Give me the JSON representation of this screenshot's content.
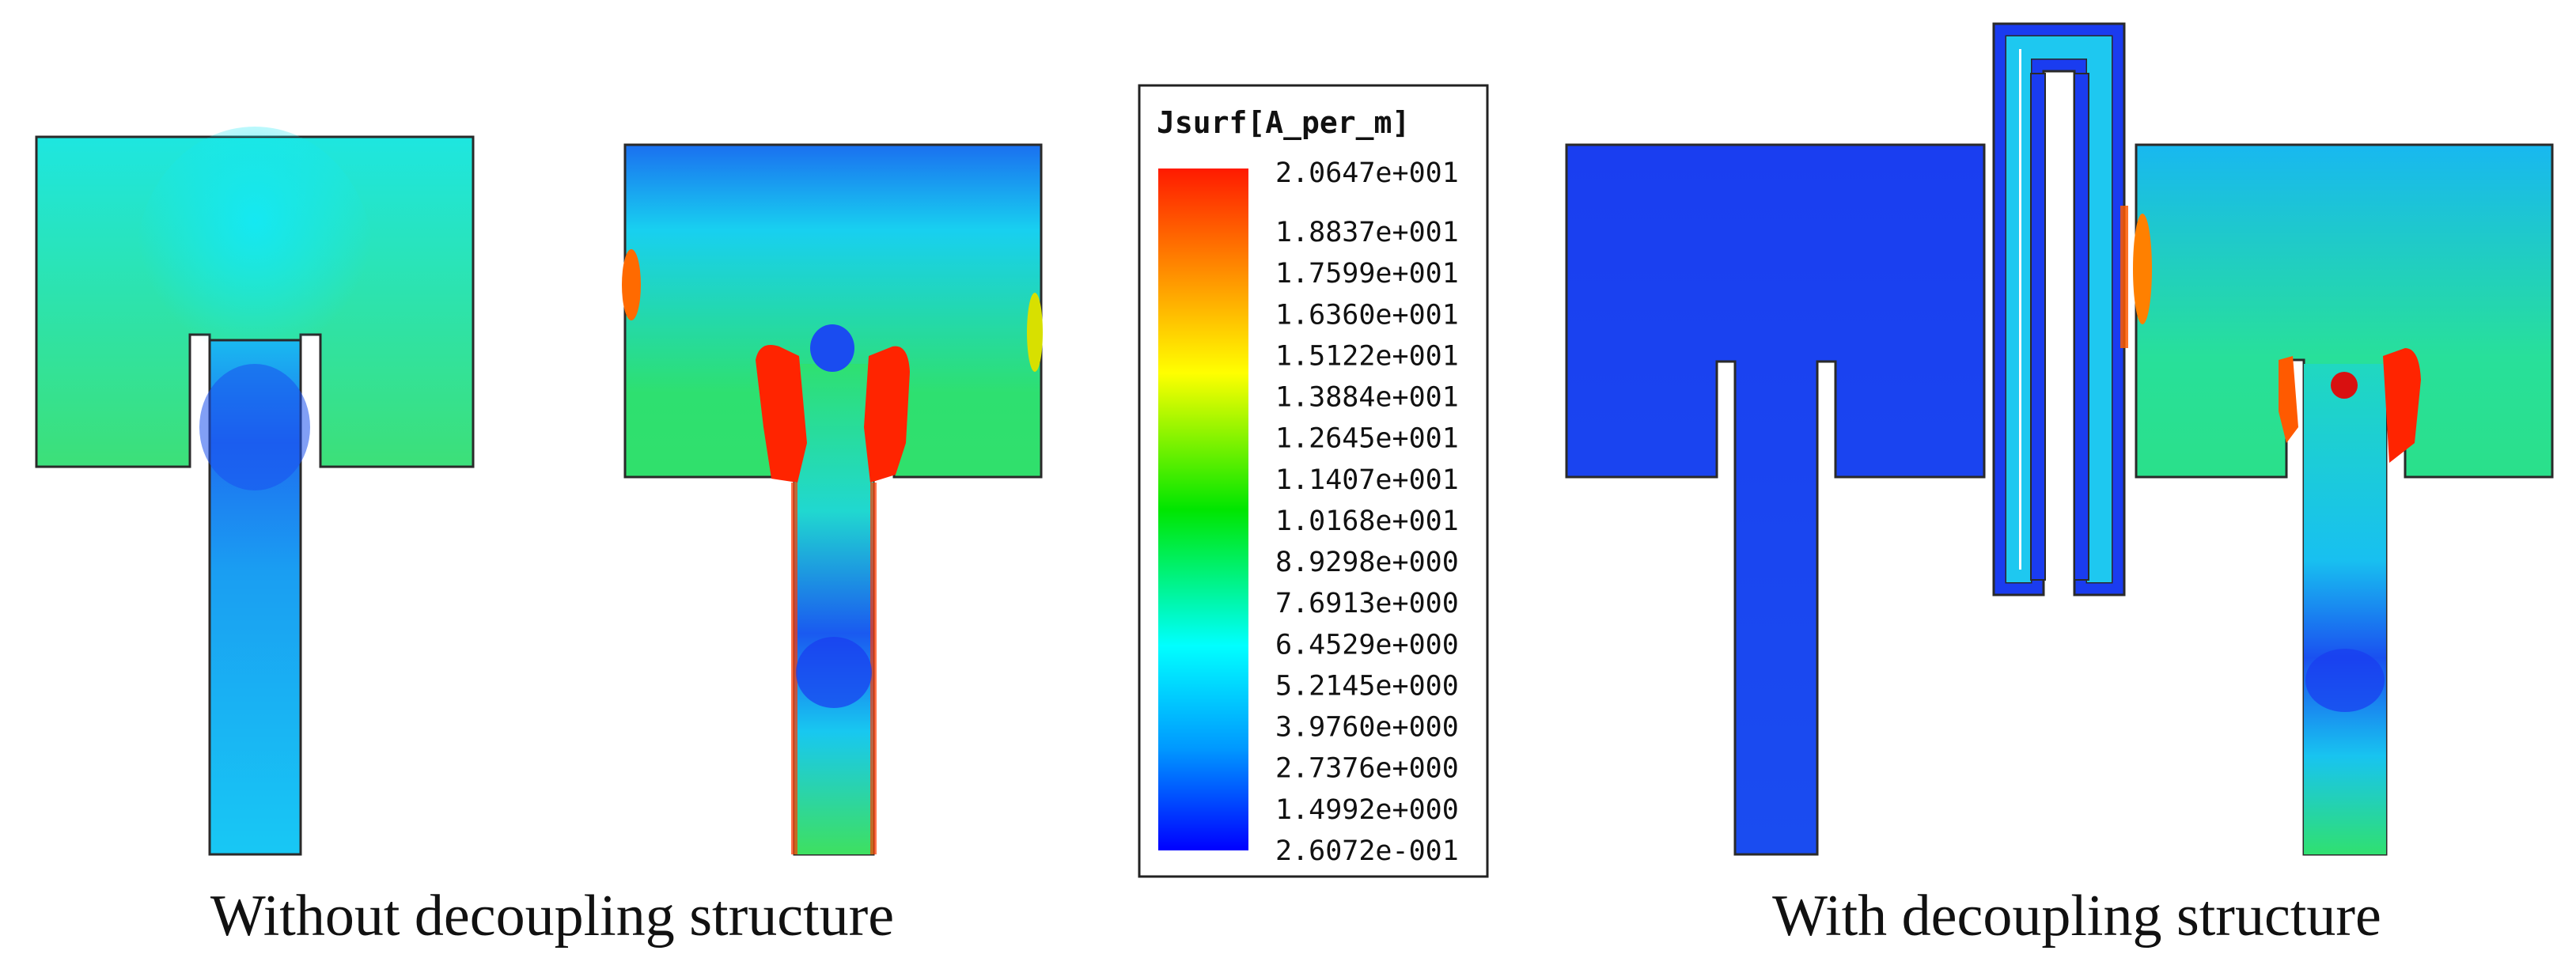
{
  "legend": {
    "title": "Jsurf[A_per_m]",
    "ticks": [
      "2.0647e+001",
      "1.8837e+001",
      "1.7599e+001",
      "1.6360e+001",
      "1.5122e+001",
      "1.3884e+001",
      "1.2645e+001",
      "1.1407e+001",
      "1.0168e+001",
      "8.9298e+000",
      "7.6913e+000",
      "6.4529e+000",
      "5.2145e+000",
      "3.9760e+000",
      "2.7376e+000",
      "1.4992e+000",
      "2.6072e-001"
    ],
    "colors": [
      "#ff1a00",
      "#ff8c00",
      "#ffff00",
      "#00e600",
      "#00ffff",
      "#0099ff",
      "#0000ff"
    ]
  },
  "captions": {
    "left": "Without decoupling structure",
    "right": "With decoupling structure"
  },
  "palette": {
    "cyan": "#14e6f0",
    "green": "#22e07a",
    "blue": "#1a3cf0",
    "deep_blue": "#0a28e6",
    "red": "#ff1a00"
  }
}
